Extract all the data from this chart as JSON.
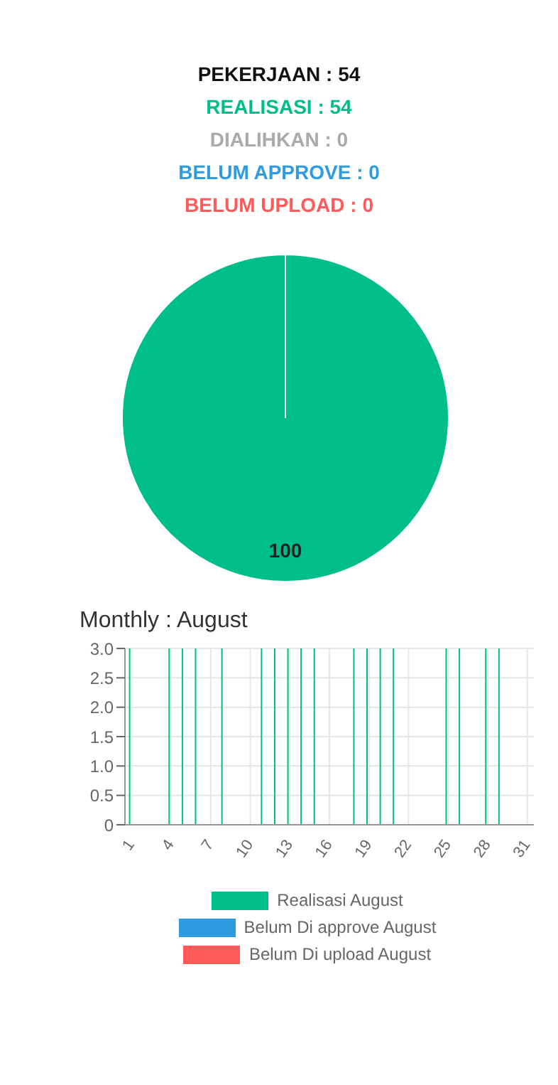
{
  "chart_data": [
    {
      "type": "pie",
      "title": "PEKERJAAN : 54",
      "categories": [
        "REALISASI : 54",
        "DIALIHKAN : 0",
        "BELUM APPROVE : 0",
        "BELUM UPLOAD : 0"
      ],
      "values": [
        100,
        0,
        0,
        0
      ],
      "colors": [
        "#00be8a",
        "#aaaaaa",
        "#2f9be0",
        "#ff5b5b"
      ],
      "value_labels": [
        "100",
        null,
        null,
        null
      ]
    },
    {
      "type": "bar",
      "title": "Monthly : August",
      "categories": [
        "1",
        null,
        null,
        "4",
        null,
        null,
        "7",
        null,
        null,
        "10",
        null,
        null,
        "13",
        null,
        null,
        "16",
        null,
        null,
        "19",
        null,
        null,
        "22",
        null,
        null,
        "25",
        null,
        null,
        "28",
        null,
        null,
        "31"
      ],
      "series": [
        {
          "name": "Realisasi August",
          "color": "#00be8a",
          "values": [
            3,
            0,
            0,
            3,
            3,
            3,
            0,
            3,
            0,
            0,
            3,
            3,
            3,
            3,
            3,
            0,
            0,
            3,
            3,
            3,
            3,
            0,
            0,
            0,
            3,
            3,
            0,
            3,
            3,
            0,
            0
          ]
        },
        {
          "name": "Belum Di approve August",
          "color": "#2f9be0",
          "values": [
            0,
            0,
            0,
            0,
            0,
            0,
            0,
            0,
            0,
            0,
            0,
            0,
            0,
            0,
            0,
            0,
            0,
            0,
            0,
            0,
            0,
            0,
            0,
            0,
            0,
            0,
            0,
            0,
            0,
            0,
            0
          ]
        },
        {
          "name": "Belum Di upload August",
          "color": "#ff5b5b",
          "values": [
            0,
            0,
            0,
            0,
            0,
            0,
            0,
            0,
            0,
            0,
            0,
            0,
            0,
            0,
            0,
            0,
            0,
            0,
            0,
            0,
            0,
            0,
            0,
            0,
            0,
            0,
            0,
            0,
            0,
            0,
            0
          ]
        }
      ],
      "ylim": [
        0,
        3
      ],
      "yticks": [
        0,
        0.5,
        {
          "value": 1,
          "label": "1.0"
        },
        1.5,
        {
          "value": 2,
          "label": "2.0"
        },
        2.5,
        {
          "value": 3,
          "label": "3.0"
        }
      ],
      "grid": true,
      "legend": "bottom"
    }
  ]
}
